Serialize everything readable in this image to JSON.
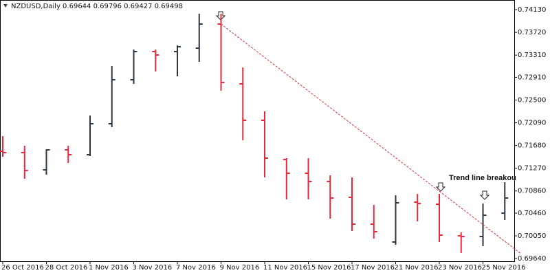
{
  "chart_data": {
    "type": "ohlc",
    "title": "NZDUSD,Daily  0.69644 0.69796 0.69427 0.69498",
    "categories": [
      "26 Oct 2016",
      null,
      "28 Oct 2016",
      null,
      "1 Nov 2016",
      null,
      "3 Nov 2016",
      null,
      "7 Nov 2016",
      null,
      "9 Nov 2016",
      null,
      "11 Nov 2016",
      null,
      "15 Nov 2016",
      null,
      "17 Nov 2016",
      null,
      "21 Nov 2016",
      null,
      "23 Nov 2016",
      null,
      "25 Nov 2016",
      null
    ],
    "open": [
      0.71576,
      0.71551,
      0.71241,
      0.716,
      0.71514,
      0.72072,
      0.72865,
      0.73374,
      0.73374,
      0.73436,
      0.7387,
      0.72791,
      0.72134,
      0.71427,
      0.71179,
      0.7103,
      0.70745,
      0.70261,
      0.69939,
      0.70658,
      0.70621,
      0.7005,
      0.70038,
      0.7046
    ],
    "high": [
      0.71848,
      0.71675,
      0.71613,
      0.71675,
      0.7222,
      0.73113,
      0.73411,
      0.73411,
      0.73485,
      0.74056,
      0.74056,
      0.73088,
      0.72295,
      0.71452,
      0.71452,
      0.71142,
      0.71104,
      0.70608,
      0.70782,
      0.70807,
      0.70807,
      0.70112,
      0.70633,
      0.71018
    ],
    "low": [
      0.71476,
      0.7108,
      0.71154,
      0.71365,
      0.71489,
      0.7201,
      0.72791,
      0.73014,
      0.72927,
      0.73188,
      0.72667,
      0.71774,
      0.71104,
      0.70708,
      0.70708,
      0.7036,
      0.70137,
      0.70001,
      0.69889,
      0.70311,
      0.69939,
      0.6974,
      0.69864,
      0.70336
    ],
    "close": [
      0.71551,
      0.71228,
      0.716,
      0.71514,
      0.72072,
      0.72865,
      0.73374,
      0.73312,
      0.7346,
      0.7387,
      0.72816,
      0.72134,
      0.71452,
      0.71179,
      0.7103,
      0.70732,
      0.70261,
      0.70125,
      0.70646,
      0.70633,
      0.70063,
      0.70038,
      0.70422,
      0.70732
    ],
    "up_color": "#2b3642",
    "down_color": "#e8283a",
    "ylim": [
      0.69592,
      0.74304
    ],
    "yticks": [
      {
        "value": 0.7413,
        "label": "0.74130"
      },
      {
        "value": 0.7372,
        "label": "0.73720"
      },
      {
        "value": 0.7331,
        "label": "0.73310"
      },
      {
        "value": 0.7291,
        "label": "0.72910"
      },
      {
        "value": 0.725,
        "label": "0.72500"
      },
      {
        "value": 0.7209,
        "label": "0.72090"
      },
      {
        "value": 0.7168,
        "label": "0.71680"
      },
      {
        "value": 0.7127,
        "label": "0.71270"
      },
      {
        "value": 0.7086,
        "label": "0.70860"
      },
      {
        "value": 0.7046,
        "label": "0.70460"
      },
      {
        "value": 0.7005,
        "label": "0.70050"
      },
      {
        "value": 0.6964,
        "label": "0.69640"
      }
    ],
    "trendline": {
      "color": "#e8283a",
      "start": [
        10,
        0.7387
      ],
      "end": [
        23.7,
        0.6974
      ]
    },
    "annotation": "Trend line breakou"
  }
}
